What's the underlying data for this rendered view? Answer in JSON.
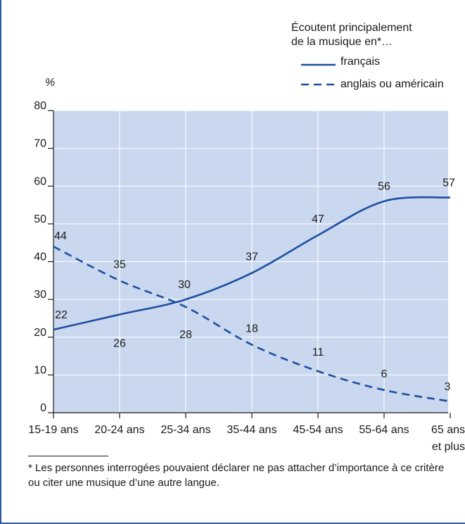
{
  "chart_data": {
    "type": "line",
    "categories": [
      "15-19 ans",
      "20-24 ans",
      "25-34 ans",
      "35-44 ans",
      "45-54 ans",
      "55-64 ans",
      "65 ans|et plus"
    ],
    "series": [
      {
        "name": "français",
        "values": [
          22,
          26,
          30,
          37,
          47,
          56,
          57
        ],
        "style": "solid",
        "color": "#1f4f9e"
      },
      {
        "name": "anglais ou américain",
        "values": [
          44,
          35,
          28,
          18,
          11,
          6,
          3
        ],
        "style": "dashed",
        "color": "#1f4f9e"
      }
    ],
    "ylabel": "%",
    "ylim": [
      0,
      80
    ],
    "yticks": [
      0,
      10,
      20,
      30,
      40,
      50,
      60,
      70,
      80
    ],
    "grid": true,
    "legend_title": "Écoutent principalement de la musique en*…",
    "legend_position": "top-right",
    "plot_background": "#c9d8ef"
  },
  "footnote": "* Les personnes interrogées pouvaient déclarer ne pas attacher d’im­portance à ce critère ou citer une musique d’une autre langue."
}
